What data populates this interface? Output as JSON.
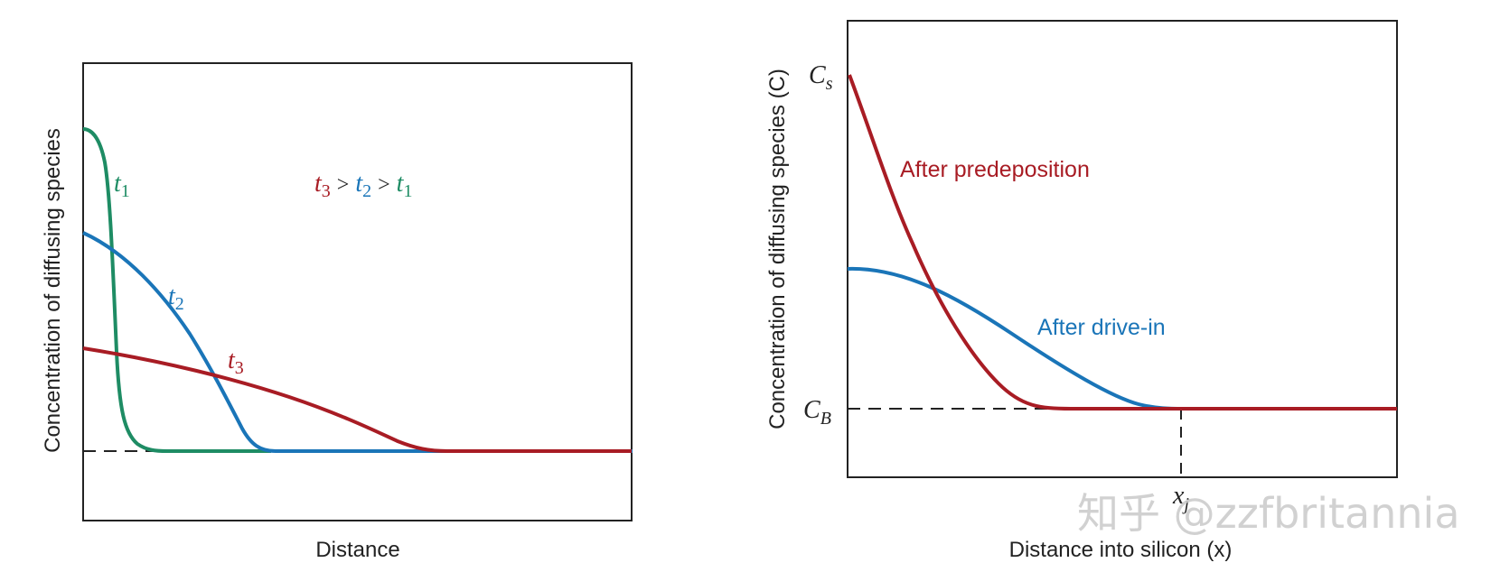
{
  "colors": {
    "green": "#1e8c64",
    "blue": "#1a75b8",
    "red": "#a81c24",
    "frame": "#222222"
  },
  "left_panel": {
    "ylabel": "Concentration of diffusing species",
    "xlabel": "Distance",
    "curves": [
      {
        "name": "t",
        "sub": "1",
        "color": "green"
      },
      {
        "name": "t",
        "sub": "2",
        "color": "blue"
      },
      {
        "name": "t",
        "sub": "3",
        "color": "red"
      }
    ],
    "relation": {
      "parts": [
        {
          "t": "t",
          "sub": "3",
          "color": "red"
        },
        {
          "op": ">"
        },
        {
          "t": "t",
          "sub": "2",
          "color": "blue"
        },
        {
          "op": ">"
        },
        {
          "t": "t",
          "sub": "1",
          "color": "green"
        }
      ]
    }
  },
  "right_panel": {
    "ylabel": "Concentration of diffusing species (C)",
    "xlabel": "Distance into silicon (x)",
    "y_marks": [
      {
        "base": "C",
        "sub": "s"
      },
      {
        "base": "C",
        "sub": "B"
      }
    ],
    "x_mark": {
      "base": "x",
      "sub": "j"
    },
    "curves": [
      {
        "label": "After predeposition",
        "color": "red"
      },
      {
        "label": "After drive-in",
        "color": "blue"
      }
    ]
  },
  "watermark": "知乎 @zzfbritannia"
}
